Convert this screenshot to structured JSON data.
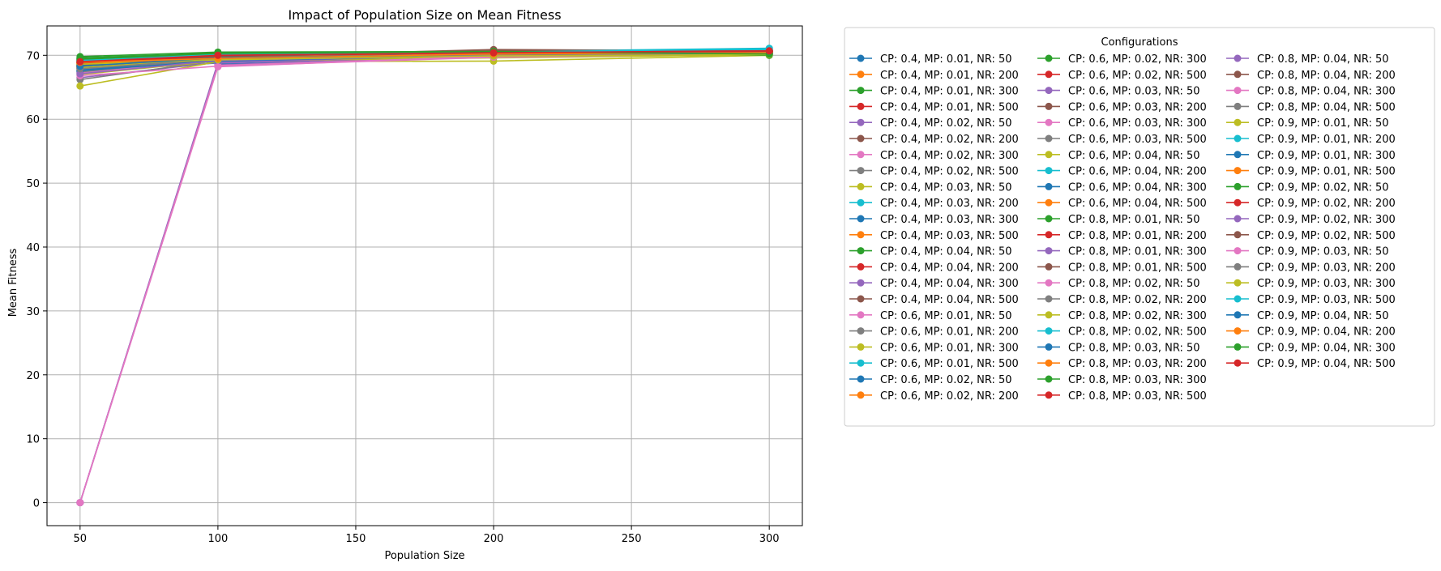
{
  "chart_data": {
    "type": "line",
    "title": "Impact of Population Size on Mean Fitness",
    "xlabel": "Population Size",
    "ylabel": "Mean Fitness",
    "x": [
      50,
      100,
      200,
      300
    ],
    "xticks": [
      50,
      100,
      150,
      200,
      250,
      300
    ],
    "yticks": [
      0,
      10,
      20,
      30,
      40,
      50,
      60,
      70
    ],
    "xlim": [
      38,
      312
    ],
    "ylim": [
      -3.6,
      74.6
    ],
    "grid": true,
    "legend": {
      "title": "Configurations",
      "placement": "outside right",
      "columns": 3
    },
    "palette": [
      "#1f77b4",
      "#ff7f0e",
      "#2ca02c",
      "#d62728",
      "#9467bd",
      "#8c564b",
      "#e377c2",
      "#7f7f7f",
      "#bcbd22",
      "#17becf"
    ],
    "series": [
      {
        "name": "CP: 0.4, MP: 0.01, NR: 50",
        "values": [
          67.5,
          68.8,
          70.2,
          70.6
        ]
      },
      {
        "name": "CP: 0.4, MP: 0.01, NR: 200",
        "values": [
          68.6,
          69.8,
          70.4,
          70.5
        ]
      },
      {
        "name": "CP: 0.4, MP: 0.01, NR: 300",
        "values": [
          69.5,
          70.2,
          70.6,
          70.4
        ]
      },
      {
        "name": "CP: 0.4, MP: 0.01, NR: 500",
        "values": [
          68.8,
          69.9,
          70.3,
          70.6
        ]
      },
      {
        "name": "CP: 0.4, MP: 0.02, NR: 50",
        "values": [
          66.5,
          68.9,
          70.0,
          70.3
        ]
      },
      {
        "name": "CP: 0.4, MP: 0.02, NR: 200",
        "values": [
          68.2,
          70.1,
          70.7,
          70.8
        ]
      },
      {
        "name": "CP: 0.4, MP: 0.02, NR: 300",
        "values": [
          67.8,
          69.5,
          70.1,
          70.4
        ]
      },
      {
        "name": "CP: 0.4, MP: 0.02, NR: 500",
        "values": [
          66.2,
          69.2,
          70.0,
          70.2
        ]
      },
      {
        "name": "CP: 0.4, MP: 0.03, NR: 50",
        "values": [
          65.2,
          69.0,
          69.1,
          70.0
        ]
      },
      {
        "name": "CP: 0.4, MP: 0.03, NR: 200",
        "values": [
          68.9,
          70.3,
          70.5,
          70.7
        ]
      },
      {
        "name": "CP: 0.4, MP: 0.03, NR: 300",
        "values": [
          69.2,
          70.0,
          70.4,
          70.5
        ]
      },
      {
        "name": "CP: 0.4, MP: 0.03, NR: 500",
        "values": [
          68.0,
          69.6,
          70.2,
          70.3
        ]
      },
      {
        "name": "CP: 0.4, MP: 0.04, NR: 50",
        "values": [
          69.0,
          70.4,
          70.6,
          70.5
        ]
      },
      {
        "name": "CP: 0.4, MP: 0.04, NR: 200",
        "values": [
          68.4,
          69.7,
          70.3,
          70.6
        ]
      },
      {
        "name": "CP: 0.4, MP: 0.04, NR: 300",
        "values": [
          67.2,
          69.4,
          70.1,
          70.4
        ]
      },
      {
        "name": "CP: 0.4, MP: 0.04, NR: 500",
        "values": [
          68.7,
          70.0,
          70.5,
          70.6
        ]
      },
      {
        "name": "CP: 0.6, MP: 0.01, NR: 50",
        "values": [
          0.0,
          68.3,
          69.9,
          70.3
        ]
      },
      {
        "name": "CP: 0.6, MP: 0.01, NR: 200",
        "values": [
          67.9,
          69.8,
          70.2,
          70.5
        ]
      },
      {
        "name": "CP: 0.6, MP: 0.01, NR: 300",
        "values": [
          68.5,
          69.3,
          70.0,
          70.2
        ]
      },
      {
        "name": "CP: 0.6, MP: 0.01, NR: 500",
        "values": [
          69.4,
          70.2,
          70.6,
          70.8
        ]
      },
      {
        "name": "CP: 0.6, MP: 0.02, NR: 50",
        "values": [
          0.0,
          68.6,
          69.8,
          70.4
        ]
      },
      {
        "name": "CP: 0.6, MP: 0.02, NR: 200",
        "values": [
          68.3,
          69.5,
          70.1,
          70.4
        ]
      },
      {
        "name": "CP: 0.6, MP: 0.02, NR: 300",
        "values": [
          69.1,
          70.1,
          70.5,
          70.6
        ]
      },
      {
        "name": "CP: 0.6, MP: 0.02, NR: 500",
        "values": [
          68.9,
          69.9,
          70.3,
          70.5
        ]
      },
      {
        "name": "CP: 0.6, MP: 0.03, NR: 50",
        "values": [
          0.0,
          68.5,
          69.9,
          70.2
        ]
      },
      {
        "name": "CP: 0.6, MP: 0.03, NR: 200",
        "values": [
          68.1,
          69.8,
          70.9,
          70.7
        ]
      },
      {
        "name": "CP: 0.6, MP: 0.03, NR: 300",
        "values": [
          67.3,
          69.2,
          70.0,
          70.3
        ]
      },
      {
        "name": "CP: 0.6, MP: 0.03, NR: 500",
        "values": [
          68.6,
          69.6,
          70.2,
          70.4
        ]
      },
      {
        "name": "CP: 0.6, MP: 0.04, NR: 50",
        "values": [
          67.0,
          69.1,
          69.6,
          70.1
        ]
      },
      {
        "name": "CP: 0.6, MP: 0.04, NR: 200",
        "values": [
          69.6,
          70.3,
          70.6,
          71.1
        ]
      },
      {
        "name": "CP: 0.6, MP: 0.04, NR: 300",
        "values": [
          68.2,
          69.7,
          70.3,
          70.5
        ]
      },
      {
        "name": "CP: 0.6, MP: 0.04, NR: 500",
        "values": [
          68.7,
          69.5,
          70.1,
          70.3
        ]
      },
      {
        "name": "CP: 0.8, MP: 0.01, NR: 50",
        "values": [
          69.3,
          70.4,
          70.5,
          70.4
        ]
      },
      {
        "name": "CP: 0.8, MP: 0.01, NR: 200",
        "values": [
          68.5,
          69.9,
          70.4,
          70.7
        ]
      },
      {
        "name": "CP: 0.8, MP: 0.01, NR: 300",
        "values": [
          0.0,
          68.8,
          70.0,
          70.3
        ]
      },
      {
        "name": "CP: 0.8, MP: 0.01, NR: 500",
        "values": [
          68.0,
          69.9,
          70.6,
          70.6
        ]
      },
      {
        "name": "CP: 0.8, MP: 0.02, NR: 50",
        "values": [
          66.8,
          68.3,
          69.7,
          70.2
        ]
      },
      {
        "name": "CP: 0.8, MP: 0.02, NR: 200",
        "values": [
          67.6,
          69.6,
          70.2,
          70.4
        ]
      },
      {
        "name": "CP: 0.8, MP: 0.02, NR: 300",
        "values": [
          68.3,
          69.0,
          69.8,
          70.1
        ]
      },
      {
        "name": "CP: 0.8, MP: 0.02, NR: 500",
        "values": [
          69.1,
          70.1,
          70.5,
          70.9
        ]
      },
      {
        "name": "CP: 0.8, MP: 0.03, NR: 50",
        "values": [
          67.7,
          69.3,
          70.1,
          70.3
        ]
      },
      {
        "name": "CP: 0.8, MP: 0.03, NR: 200",
        "values": [
          68.4,
          69.7,
          70.3,
          70.5
        ]
      },
      {
        "name": "CP: 0.8, MP: 0.03, NR: 300",
        "values": [
          69.8,
          70.5,
          70.6,
          70.3
        ]
      },
      {
        "name": "CP: 0.8, MP: 0.03, NR: 500",
        "values": [
          68.9,
          69.9,
          70.2,
          70.6
        ]
      },
      {
        "name": "CP: 0.8, MP: 0.04, NR: 50",
        "values": [
          0.0,
          68.9,
          70.1,
          70.4
        ]
      },
      {
        "name": "CP: 0.8, MP: 0.04, NR: 200",
        "values": [
          68.2,
          69.8,
          70.7,
          70.8
        ]
      },
      {
        "name": "CP: 0.8, MP: 0.04, NR: 300",
        "values": [
          0.0,
          68.4,
          69.8,
          70.2
        ]
      },
      {
        "name": "CP: 0.8, MP: 0.04, NR: 500",
        "values": [
          67.4,
          69.5,
          70.1,
          70.3
        ]
      },
      {
        "name": "CP: 0.9, MP: 0.01, NR: 50",
        "values": [
          68.1,
          69.4,
          69.9,
          70.1
        ]
      },
      {
        "name": "CP: 0.9, MP: 0.01, NR: 200",
        "values": [
          69.2,
          70.0,
          70.5,
          70.8
        ]
      },
      {
        "name": "CP: 0.9, MP: 0.01, NR: 300",
        "values": [
          67.6,
          69.1,
          70.0,
          70.4
        ]
      },
      {
        "name": "CP: 0.9, MP: 0.01, NR: 500",
        "values": [
          68.7,
          69.7,
          70.3,
          70.5
        ]
      },
      {
        "name": "CP: 0.9, MP: 0.02, NR: 50",
        "values": [
          69.6,
          70.3,
          70.5,
          70.0
        ]
      },
      {
        "name": "CP: 0.9, MP: 0.02, NR: 200",
        "values": [
          68.8,
          69.9,
          70.4,
          70.6
        ]
      },
      {
        "name": "CP: 0.9, MP: 0.02, NR: 300",
        "values": [
          67.1,
          69.2,
          70.0,
          70.3
        ]
      },
      {
        "name": "CP: 0.9, MP: 0.02, NR: 500",
        "values": [
          68.4,
          69.8,
          70.6,
          70.7
        ]
      },
      {
        "name": "CP: 0.9, MP: 0.03, NR: 50",
        "values": [
          0.0,
          68.2,
          69.9,
          70.2
        ]
      },
      {
        "name": "CP: 0.9, MP: 0.03, NR: 200",
        "values": [
          67.9,
          69.4,
          70.1,
          70.3
        ]
      },
      {
        "name": "CP: 0.9, MP: 0.03, NR: 300",
        "values": [
          68.6,
          69.3,
          69.9,
          70.1
        ]
      },
      {
        "name": "CP: 0.9, MP: 0.03, NR: 500",
        "values": [
          69.0,
          70.2,
          70.5,
          71.0
        ]
      },
      {
        "name": "CP: 0.9, MP: 0.04, NR: 50",
        "values": [
          68.3,
          69.6,
          70.2,
          70.4
        ]
      },
      {
        "name": "CP: 0.9, MP: 0.04, NR: 200",
        "values": [
          68.9,
          69.5,
          70.2,
          70.4
        ]
      },
      {
        "name": "CP: 0.9, MP: 0.04, NR: 300",
        "values": [
          69.4,
          70.3,
          70.6,
          70.2
        ]
      },
      {
        "name": "CP: 0.9, MP: 0.04, NR: 500",
        "values": [
          69.0,
          70.0,
          70.4,
          70.7
        ]
      }
    ]
  }
}
